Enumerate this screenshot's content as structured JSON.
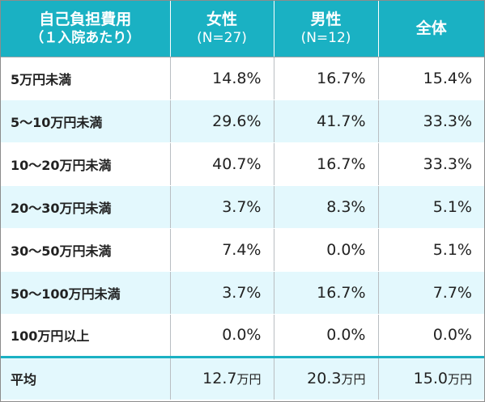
{
  "header": {
    "col0_line1": "自己負担費用",
    "col0_line2": "（１入院あたり）",
    "col1_line1": "女性",
    "col1_line2": "(N=27)",
    "col2_line1": "男性",
    "col2_line2": "(N=12)",
    "col3": "全体"
  },
  "rows": [
    {
      "label": "5万円未満",
      "female": "14.8%",
      "male": "16.7%",
      "total": "15.4%"
    },
    {
      "label": "5～10万円未満",
      "female": "29.6%",
      "male": "41.7%",
      "total": "33.3%"
    },
    {
      "label": "10～20万円未満",
      "female": "40.7%",
      "male": "16.7%",
      "total": "33.3%"
    },
    {
      "label": "20～30万円未満",
      "female": "3.7%",
      "male": "8.3%",
      "total": "5.1%"
    },
    {
      "label": "30～50万円未満",
      "female": "7.4%",
      "male": "0.0%",
      "total": "5.1%"
    },
    {
      "label": "50～100万円未満",
      "female": "3.7%",
      "male": "16.7%",
      "total": "7.7%"
    },
    {
      "label": "100万円以上",
      "female": "0.0%",
      "male": "0.0%",
      "total": "0.0%"
    }
  ],
  "average": {
    "label": "平均",
    "female": "12.7",
    "male": "20.3",
    "total": "15.0",
    "unit": "万円"
  },
  "colors": {
    "header_bg": "#1ab1c3",
    "stripe_bg": "#e3f8fd"
  }
}
